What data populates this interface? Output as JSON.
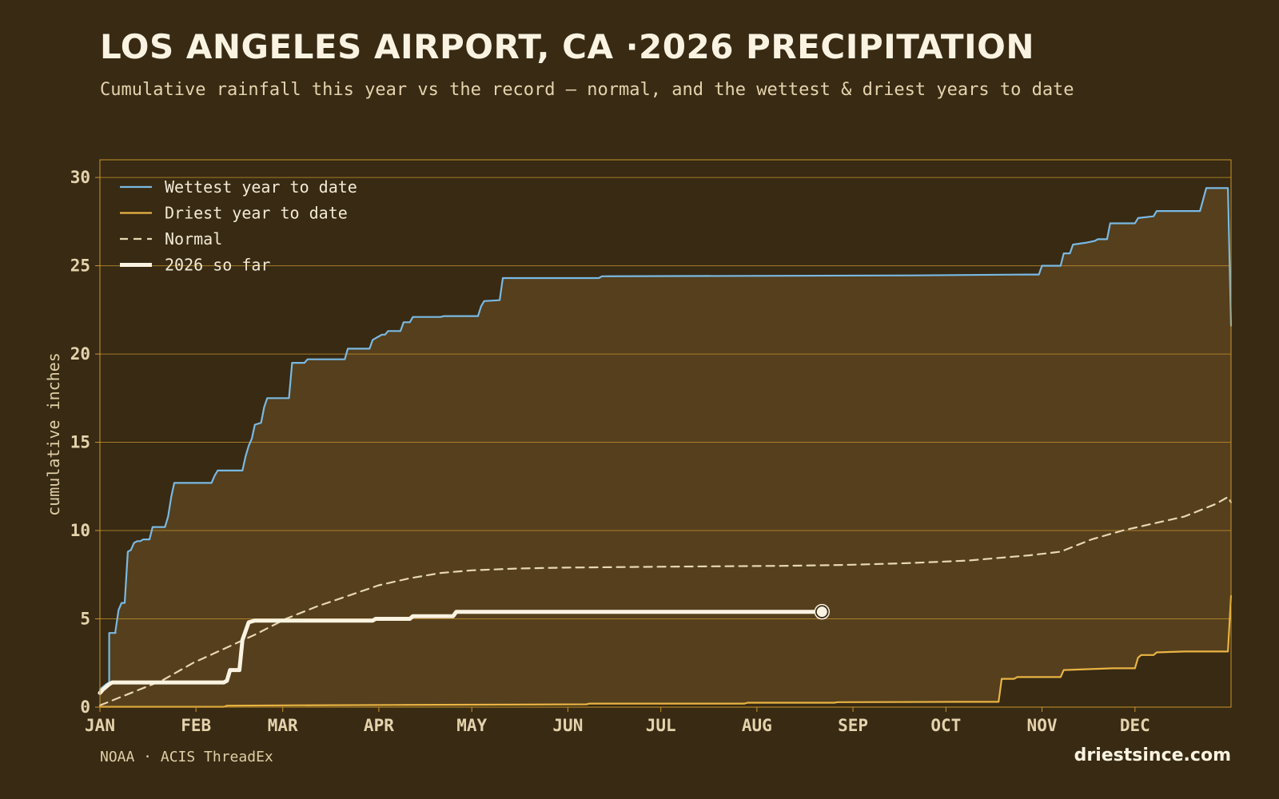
{
  "header": {
    "title": "LOS ANGELES AIRPORT, CA ·2026 PRECIPITATION",
    "subtitle": "Cumulative rainfall this year vs the record — normal, and the wettest & driest years to date"
  },
  "footer": {
    "source": "NOAA · ACIS ThreadEx",
    "brand": "driestsince.com"
  },
  "colors": {
    "background": "#382a13",
    "band_fill": "#553f1d",
    "grid": "#c9962e",
    "wettest": "#79b9e3",
    "driest": "#e9b443",
    "normal": "#e7d7b3",
    "current": "#fbf3e2"
  },
  "chart_data": {
    "type": "line",
    "ylabel": "cumulative inches",
    "xlabel": "",
    "ylim": [
      0,
      31
    ],
    "xlim": [
      0,
      365
    ],
    "y_ticks": [
      0,
      5,
      10,
      15,
      20,
      25,
      30
    ],
    "x_ticks": [
      {
        "label": "JAN",
        "day": 0
      },
      {
        "label": "FEB",
        "day": 31
      },
      {
        "label": "MAR",
        "day": 59
      },
      {
        "label": "APR",
        "day": 90
      },
      {
        "label": "MAY",
        "day": 120
      },
      {
        "label": "JUN",
        "day": 151
      },
      {
        "label": "JUL",
        "day": 181
      },
      {
        "label": "AUG",
        "day": 212
      },
      {
        "label": "SEP",
        "day": 243
      },
      {
        "label": "OCT",
        "day": 273
      },
      {
        "label": "NOV",
        "day": 304
      },
      {
        "label": "DEC",
        "day": 334
      }
    ],
    "grid": true,
    "legend_position": "top-left",
    "x_units": "day of year",
    "series": [
      {
        "name": "Wettest year to date",
        "style": "solid",
        "color": "#79b9e3",
        "points": [
          [
            0,
            1.0
          ],
          [
            2,
            1.3
          ],
          [
            3,
            1.4
          ],
          [
            3,
            4.2
          ],
          [
            5,
            4.2
          ],
          [
            5,
            4.3
          ],
          [
            6,
            5.5
          ],
          [
            7,
            5.9
          ],
          [
            8,
            5.9
          ],
          [
            9,
            8.8
          ],
          [
            10,
            8.9
          ],
          [
            11,
            9.3
          ],
          [
            12,
            9.4
          ],
          [
            13,
            9.4
          ],
          [
            14,
            9.5
          ],
          [
            16,
            9.5
          ],
          [
            17,
            10.2
          ],
          [
            21,
            10.2
          ],
          [
            22,
            10.8
          ],
          [
            23,
            11.9
          ],
          [
            24,
            12.7
          ],
          [
            36,
            12.7
          ],
          [
            37,
            13.1
          ],
          [
            38,
            13.4
          ],
          [
            46,
            13.4
          ],
          [
            47,
            14.2
          ],
          [
            48,
            14.8
          ],
          [
            49,
            15.2
          ],
          [
            50,
            16.0
          ],
          [
            52,
            16.1
          ],
          [
            53,
            17.0
          ],
          [
            54,
            17.5
          ],
          [
            61,
            17.5
          ],
          [
            62,
            19.5
          ],
          [
            66,
            19.5
          ],
          [
            67,
            19.7
          ],
          [
            79,
            19.7
          ],
          [
            80,
            20.3
          ],
          [
            87,
            20.3
          ],
          [
            88,
            20.8
          ],
          [
            89,
            20.9
          ],
          [
            90,
            21.0
          ],
          [
            91,
            21.1
          ],
          [
            92,
            21.1
          ],
          [
            93,
            21.3
          ],
          [
            97,
            21.3
          ],
          [
            98,
            21.8
          ],
          [
            100,
            21.8
          ],
          [
            101,
            22.1
          ],
          [
            110,
            22.1
          ],
          [
            111,
            22.15
          ],
          [
            122,
            22.15
          ],
          [
            123,
            22.7
          ],
          [
            124,
            23.0
          ],
          [
            129,
            23.05
          ],
          [
            130,
            24.3
          ],
          [
            161,
            24.3
          ],
          [
            162,
            24.4
          ],
          [
            262,
            24.45
          ],
          [
            299,
            24.5
          ],
          [
            303,
            24.5
          ],
          [
            304,
            25.0
          ],
          [
            310,
            25.0
          ],
          [
            311,
            25.7
          ],
          [
            313,
            25.7
          ],
          [
            314,
            26.2
          ],
          [
            318,
            26.3
          ],
          [
            321,
            26.4
          ],
          [
            322,
            26.5
          ],
          [
            325,
            26.5
          ],
          [
            326,
            27.4
          ],
          [
            334,
            27.4
          ],
          [
            335,
            27.7
          ],
          [
            340,
            27.8
          ],
          [
            341,
            28.1
          ],
          [
            355,
            28.1
          ],
          [
            357,
            29.4
          ],
          [
            364,
            29.4
          ],
          [
            365,
            21.6
          ]
        ]
      },
      {
        "name": "Driest year to date",
        "style": "solid",
        "color": "#e9b443",
        "points": [
          [
            0,
            0.02
          ],
          [
            40,
            0.02
          ],
          [
            41,
            0.08
          ],
          [
            60,
            0.1
          ],
          [
            95,
            0.12
          ],
          [
            130,
            0.14
          ],
          [
            157,
            0.16
          ],
          [
            158,
            0.2
          ],
          [
            208,
            0.2
          ],
          [
            209,
            0.25
          ],
          [
            237,
            0.25
          ],
          [
            238,
            0.28
          ],
          [
            278,
            0.3
          ],
          [
            290,
            0.3
          ],
          [
            291,
            1.6
          ],
          [
            295,
            1.6
          ],
          [
            296,
            1.7
          ],
          [
            310,
            1.7
          ],
          [
            311,
            2.1
          ],
          [
            327,
            2.2
          ],
          [
            334,
            2.2
          ],
          [
            335,
            2.8
          ],
          [
            336,
            2.95
          ],
          [
            340,
            2.95
          ],
          [
            341,
            3.1
          ],
          [
            350,
            3.15
          ],
          [
            364,
            3.15
          ],
          [
            365,
            6.3
          ]
        ]
      },
      {
        "name": "Normal",
        "style": "dashed",
        "color": "#e7d7b3",
        "points": [
          [
            0,
            0.1
          ],
          [
            10,
            0.8
          ],
          [
            20,
            1.5
          ],
          [
            30,
            2.5
          ],
          [
            40,
            3.3
          ],
          [
            50,
            4.1
          ],
          [
            60,
            5.0
          ],
          [
            70,
            5.7
          ],
          [
            80,
            6.3
          ],
          [
            90,
            6.9
          ],
          [
            100,
            7.3
          ],
          [
            110,
            7.6
          ],
          [
            120,
            7.75
          ],
          [
            135,
            7.85
          ],
          [
            150,
            7.9
          ],
          [
            180,
            7.95
          ],
          [
            220,
            8.0
          ],
          [
            240,
            8.05
          ],
          [
            260,
            8.15
          ],
          [
            280,
            8.3
          ],
          [
            300,
            8.6
          ],
          [
            310,
            8.8
          ],
          [
            320,
            9.5
          ],
          [
            330,
            10.0
          ],
          [
            340,
            10.4
          ],
          [
            350,
            10.8
          ],
          [
            360,
            11.5
          ],
          [
            364,
            11.9
          ],
          [
            365,
            11.6
          ]
        ]
      },
      {
        "name": "2026 so far",
        "style": "solid",
        "color": "#fbf3e2",
        "points": [
          [
            0,
            0.8
          ],
          [
            1,
            1.0
          ],
          [
            3,
            1.3
          ],
          [
            4,
            1.4
          ],
          [
            40,
            1.4
          ],
          [
            41,
            1.5
          ],
          [
            42,
            2.1
          ],
          [
            45,
            2.1
          ],
          [
            46,
            3.8
          ],
          [
            48,
            4.8
          ],
          [
            50,
            4.9
          ],
          [
            88,
            4.9
          ],
          [
            89,
            5.0
          ],
          [
            100,
            5.0
          ],
          [
            101,
            5.15
          ],
          [
            114,
            5.15
          ],
          [
            115,
            5.4
          ],
          [
            233,
            5.4
          ]
        ]
      }
    ],
    "current_marker": {
      "day": 233,
      "value": 5.4
    }
  }
}
